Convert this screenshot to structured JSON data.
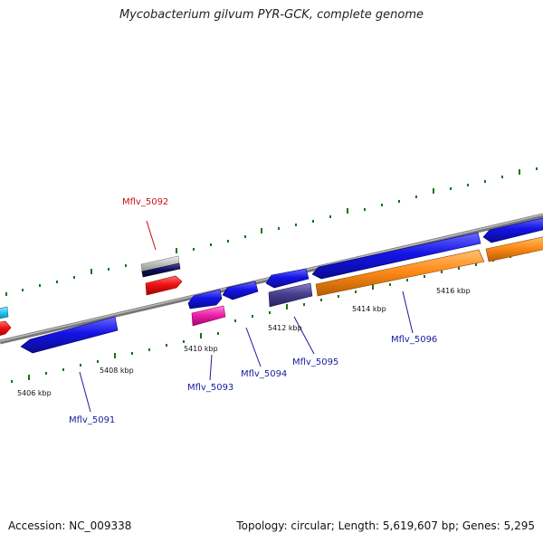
{
  "title": "Mycobacterium gilvum PYR-GCK, complete genome",
  "footer": {
    "accession": "Accession: NC_009338",
    "summary": "Topology: circular; Length: 5,619,607 bp; Genes: 5,295"
  },
  "scale_labels": [
    "5406 kbp",
    "5408 kbp",
    "5410 kbp",
    "5412 kbp",
    "5414 kbp",
    "5416 kbp"
  ],
  "gene_labels": [
    {
      "id": "g5091",
      "text": "Mflv_5091",
      "color": "#1a1aa0"
    },
    {
      "id": "g5092",
      "text": "Mflv_5092",
      "color": "#cc1111"
    },
    {
      "id": "g5093",
      "text": "Mflv_5093",
      "color": "#1a1aa0"
    },
    {
      "id": "g5094",
      "text": "Mflv_5094",
      "color": "#1a1aa0"
    },
    {
      "id": "g5095",
      "text": "Mflv_5095",
      "color": "#1a1aa0"
    },
    {
      "id": "g5096",
      "text": "Mflv_5096",
      "color": "#1a1aa0"
    }
  ],
  "colors": {
    "backbone": "#888888",
    "blue_gene": "#1414e6",
    "red_gene": "#ee1111",
    "orange_gene": "#ff8c1a",
    "magenta_gene": "#ee22aa",
    "slate_gene": "#4a3f8f",
    "cyan_gene": "#22c8f0",
    "tick": "#117711"
  }
}
